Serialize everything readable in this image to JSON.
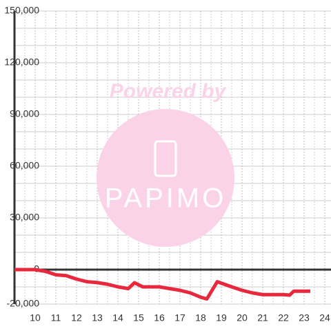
{
  "chart_data": {
    "type": "line",
    "watermark": {
      "title": "Powered by",
      "brand": "PAPIMO"
    },
    "x": [
      9,
      10,
      10.5,
      11,
      11.5,
      12,
      12.5,
      13,
      13.5,
      14,
      14.5,
      14.8,
      15.2,
      16,
      16.5,
      17,
      17.5,
      18,
      18.3,
      18.8,
      19.5,
      20,
      20.5,
      21,
      22,
      22.3,
      22.5,
      23.3
    ],
    "series": [
      {
        "color": "#e8283c",
        "values": [
          0,
          0,
          -1000,
          -3000,
          -3500,
          -5500,
          -7000,
          -7500,
          -8500,
          -10000,
          -11000,
          -7600,
          -10000,
          -10000,
          -11000,
          -12000,
          -13500,
          -16000,
          -17000,
          -7000,
          -10000,
          -12000,
          -13500,
          -14500,
          -14500,
          -14800,
          -12500,
          -12500
        ]
      }
    ],
    "xlim": [
      9,
      24.3
    ],
    "ylim": [
      -20000,
      150000
    ],
    "xticks": [
      10,
      11,
      12,
      13,
      14,
      15,
      16,
      17,
      18,
      19,
      20,
      21,
      22,
      23,
      24
    ],
    "yticks": [
      {
        "value": 150000,
        "label": "150,000"
      },
      {
        "value": 120000,
        "label": "120,000"
      },
      {
        "value": 90000,
        "label": "90,000"
      },
      {
        "value": 60000,
        "label": "60,000"
      },
      {
        "value": 30000,
        "label": "30,000"
      },
      0,
      {
        "value": -20000,
        "label": "-20,000"
      }
    ],
    "yminor": [
      140000,
      130000,
      110000,
      100000,
      80000,
      70000,
      50000,
      40000,
      20000,
      10000,
      -10000
    ],
    "xminor": [
      9.5,
      10.5,
      11.5,
      12.5,
      13.5,
      14.5,
      15.5,
      16.5,
      17.5,
      18.5,
      19.5,
      20.5,
      21.5,
      22.5,
      23.5
    ],
    "grid": true
  }
}
